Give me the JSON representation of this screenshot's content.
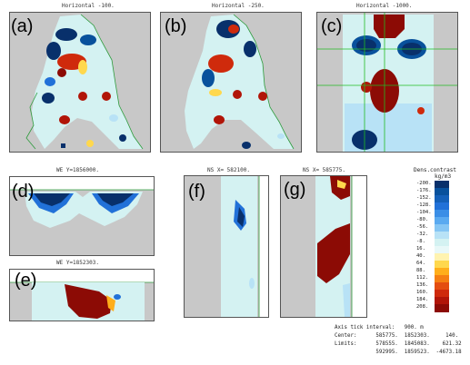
{
  "panels": {
    "a": {
      "letter": "(a)",
      "title": "Horizontal  -100."
    },
    "b": {
      "letter": "(b)",
      "title": "Horizontal  -250."
    },
    "c": {
      "letter": "(c)",
      "title": "Horizontal  -1000."
    },
    "d": {
      "letter": "(d)",
      "title": "WE   Y=1856000."
    },
    "e": {
      "letter": "(e)",
      "title": "WE  Y=1852303."
    },
    "f": {
      "letter": "(f)",
      "title": "NS  X= 582100."
    },
    "g": {
      "letter": "(g)",
      "title": "NS  X= 585775."
    }
  },
  "colorbar": {
    "title": "Dens.contrast",
    "unit": "kg/m3",
    "labels": [
      "-200.",
      "-176.",
      "-152.",
      "-128.",
      "-104.",
      "-80.",
      "-56.",
      "-32.",
      "-8.",
      "16.",
      "40.",
      "64.",
      "88.",
      "112.",
      "136.",
      "160.",
      "184.",
      "208."
    ],
    "colors": [
      "#08306b",
      "#08519c",
      "#1460b8",
      "#2171d8",
      "#3a8ee6",
      "#5aaaf0",
      "#86c6f4",
      "#b8e2f6",
      "#d4f2f2",
      "#e8f8f8",
      "#fff3b0",
      "#ffd84d",
      "#ffae1a",
      "#f57f12",
      "#e44d10",
      "#cf2a0c",
      "#b11508",
      "#8c0b05"
    ]
  },
  "info": {
    "line1": "Axis tick interval:   900. m",
    "line2": "Center:      585775.  1852303.     140.",
    "line3": "Limits:      578555.  1845083.    621.32",
    "line4": "             592995.  1859523.  -4673.18"
  }
}
